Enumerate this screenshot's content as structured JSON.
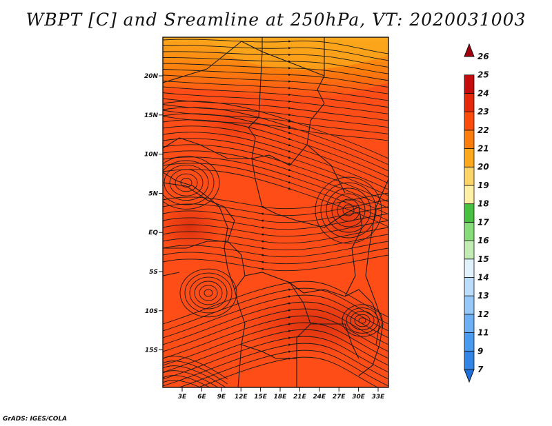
{
  "title": "WBPT [C] and Sreamline at 250hPa, VT: 2020031003",
  "credit": "GrADS: IGES/COLA",
  "map": {
    "lat_ticks": [
      "20N",
      "15N",
      "10N",
      "5N",
      "EQ",
      "5S",
      "10S",
      "15S"
    ],
    "lon_ticks": [
      "3E",
      "6E",
      "9E",
      "12E",
      "15E",
      "18E",
      "21E",
      "24E",
      "27E",
      "30E",
      "33E"
    ],
    "base_color": "#ff4d17"
  },
  "colorbar": {
    "labels": [
      "7",
      "9",
      "11",
      "12",
      "13",
      "14",
      "15",
      "16",
      "17",
      "18",
      "19",
      "20",
      "21",
      "22",
      "23",
      "24",
      "25",
      "26"
    ],
    "colors": [
      "#1e6edc",
      "#3284e6",
      "#4a9af0",
      "#6eb0f6",
      "#96c8fa",
      "#bcdcfc",
      "#e0f2fc",
      "#c2ecb4",
      "#86dc78",
      "#48c040",
      "#fff0a6",
      "#fcd46a",
      "#fca81c",
      "#fc7c0c",
      "#fc4c0c",
      "#e4280c",
      "#c40c0c",
      "#a0000c"
    ]
  }
}
